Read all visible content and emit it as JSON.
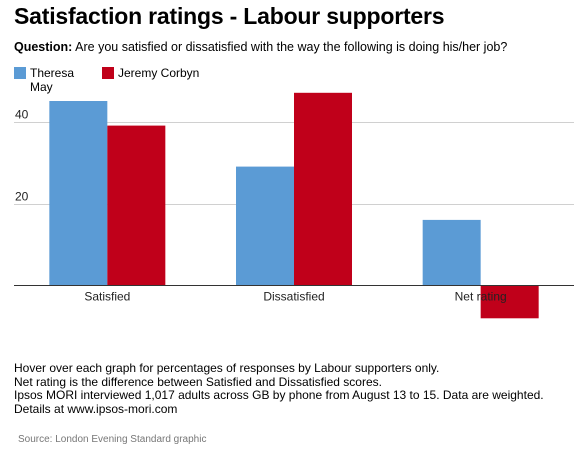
{
  "title": "Satisfaction ratings - Labour supporters",
  "question": {
    "label": "Question:",
    "text": "Are you satisfied or dissatisfied with the way the following is doing his/her job?"
  },
  "chart_data": {
    "type": "bar",
    "categories": [
      "Satisfied",
      "Dissatisfied",
      "Net rating"
    ],
    "series": [
      {
        "name": "Theresa May",
        "values": [
          45,
          29,
          16
        ],
        "color": "#5b9bd5"
      },
      {
        "name": "Jeremy Corbyn",
        "values": [
          39,
          47,
          -8
        ],
        "color": "#c0001a"
      }
    ],
    "ylim": [
      -8,
      50
    ],
    "yticks": [
      20,
      40
    ],
    "grid": true,
    "legend": "top-left",
    "xlabel": "",
    "ylabel": ""
  },
  "notes": [
    "Hover over each graph for percentages of responses by Labour supporters only.",
    "Net rating is the difference between Satisfied and Dissatisfied scores.",
    "Ipsos MORI interviewed 1,017 adults across GB by phone from August 13 to 15. Data are weighted. Details at www.ipsos-mori.com"
  ],
  "source": "Source: London Evening Standard graphic"
}
